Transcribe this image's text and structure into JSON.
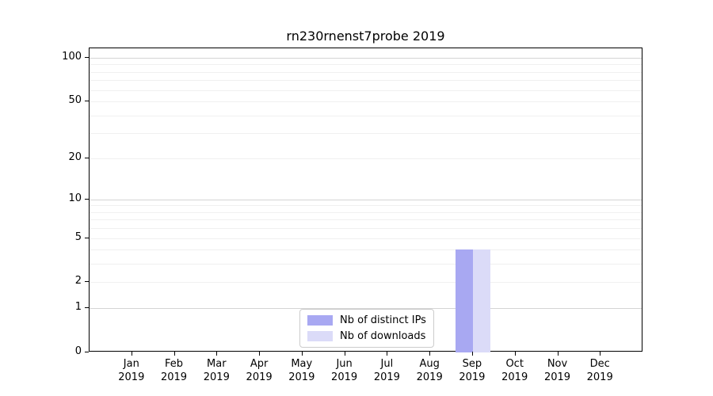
{
  "chart_data": {
    "type": "bar",
    "title": "rn230rnenst7probe 2019",
    "xlabel": "",
    "ylabel": "",
    "categories": [
      "Jan 2019",
      "Feb 2019",
      "Mar 2019",
      "Apr 2019",
      "May 2019",
      "Jun 2019",
      "Jul 2019",
      "Aug 2019",
      "Sep 2019",
      "Oct 2019",
      "Nov 2019",
      "Dec 2019"
    ],
    "x_tick_months": [
      "Jan",
      "Feb",
      "Mar",
      "Apr",
      "May",
      "Jun",
      "Jul",
      "Aug",
      "Sep",
      "Oct",
      "Nov",
      "Dec"
    ],
    "x_tick_year": "2019",
    "series": [
      {
        "name": "Nb of distinct IPs",
        "color": "#a8a8f2",
        "values": [
          0,
          0,
          0,
          0,
          0,
          0,
          0,
          0,
          4,
          0,
          0,
          0
        ]
      },
      {
        "name": "Nb of downloads",
        "color": "#dbdbf8",
        "values": [
          0,
          0,
          0,
          0,
          0,
          0,
          0,
          0,
          4,
          0,
          0,
          0
        ]
      }
    ],
    "yticks": [
      0,
      1,
      2,
      5,
      10,
      20,
      50,
      100
    ],
    "major_gridlines": [
      1,
      10,
      100
    ],
    "minor_gridlines": [
      2,
      3,
      4,
      5,
      6,
      7,
      8,
      9,
      20,
      30,
      40,
      50,
      60,
      70,
      80,
      90
    ],
    "ylim": [
      0,
      116
    ],
    "scale": "log1p",
    "grid": true,
    "legend_position": "lower center"
  },
  "colors": {
    "background": "#ffffff",
    "axis": "#000000",
    "grid_minor": "#f0f0f0",
    "grid_major": "#d4d4d4",
    "legend_border": "#cccccc"
  }
}
